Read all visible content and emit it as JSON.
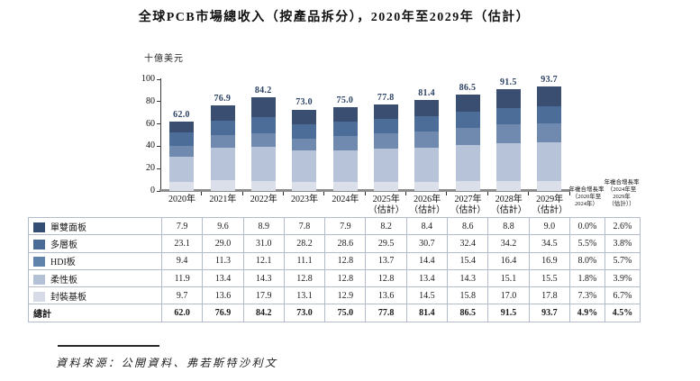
{
  "title": "全球PCB市場總收入（按產品拆分），2020年至2029年（估計）",
  "chart_data": {
    "type": "bar",
    "stacked": true,
    "title": "全球PCB市場總收入（按產品拆分），2020年至2029年（估計）",
    "ylabel": "十億美元",
    "unit_label": "十億美元",
    "ylim": [
      0,
      100
    ],
    "yticks": [
      0,
      20,
      40,
      60,
      80,
      100
    ],
    "grid": false,
    "legend_position": "table-left",
    "categories": [
      {
        "label": "2020年",
        "note": ""
      },
      {
        "label": "2021年",
        "note": ""
      },
      {
        "label": "2022年",
        "note": ""
      },
      {
        "label": "2023年",
        "note": ""
      },
      {
        "label": "2024年",
        "note": ""
      },
      {
        "label": "2025年",
        "note": "（估計）"
      },
      {
        "label": "2026年",
        "note": "（估計）"
      },
      {
        "label": "2027年",
        "note": "（估計）"
      },
      {
        "label": "2028年",
        "note": "（估計）"
      },
      {
        "label": "2029年",
        "note": "（估計）"
      }
    ],
    "series": [
      {
        "name": "單雙面板",
        "values": [
          7.9,
          9.6,
          8.9,
          7.8,
          7.9,
          8.2,
          8.4,
          8.6,
          8.8,
          9.0
        ],
        "bar_color": "#dbdfe9",
        "legend_color": "#344e73",
        "cagr_2020_2024": "0.0%",
        "cagr_2024_2029": "2.6%"
      },
      {
        "name": "多層板",
        "values": [
          23.1,
          29.0,
          31.0,
          28.2,
          28.6,
          29.5,
          30.7,
          32.4,
          34.2,
          34.5
        ],
        "bar_color": "#b6c3d8",
        "legend_color": "#4a6b96",
        "cagr_2020_2024": "5.5%",
        "cagr_2024_2029": "3.8%"
      },
      {
        "name": "HDI板",
        "values": [
          9.4,
          11.3,
          12.1,
          11.1,
          12.8,
          13.7,
          14.4,
          15.4,
          16.4,
          16.9
        ],
        "bar_color": "#7089ae",
        "legend_color": "#6083ab",
        "cagr_2020_2024": "8.0%",
        "cagr_2024_2029": "5.7%"
      },
      {
        "name": "柔性板",
        "values": [
          11.9,
          13.4,
          14.3,
          12.8,
          12.8,
          12.8,
          13.4,
          14.3,
          15.1,
          15.5
        ],
        "bar_color": "#4d6d99",
        "legend_color": "#b3c1d7",
        "cagr_2020_2024": "1.8%",
        "cagr_2024_2029": "3.9%"
      },
      {
        "name": "封裝基板",
        "values": [
          9.7,
          13.6,
          17.9,
          13.1,
          12.9,
          13.6,
          14.5,
          15.8,
          17.0,
          17.8
        ],
        "bar_color": "#394e70",
        "legend_color": "#d6dbe7",
        "cagr_2020_2024": "7.3%",
        "cagr_2024_2029": "6.7%"
      }
    ],
    "totals": {
      "label": "總計",
      "values": [
        62.0,
        76.9,
        84.2,
        73.0,
        75.0,
        77.8,
        81.4,
        86.5,
        91.5,
        93.7
      ],
      "cagr_2020_2024": "4.9%",
      "cagr_2024_2029": "4.5%"
    }
  },
  "table": {
    "cagr_headers": [
      {
        "lines": [
          "年複合增長率",
          "（2020年至",
          "2024年）"
        ]
      },
      {
        "lines": [
          "年複合增長率",
          "（2024年至",
          "2029年",
          "（估計））"
        ]
      }
    ]
  },
  "source": {
    "text": "資料來源：公開資料、弗若斯特沙利文"
  }
}
